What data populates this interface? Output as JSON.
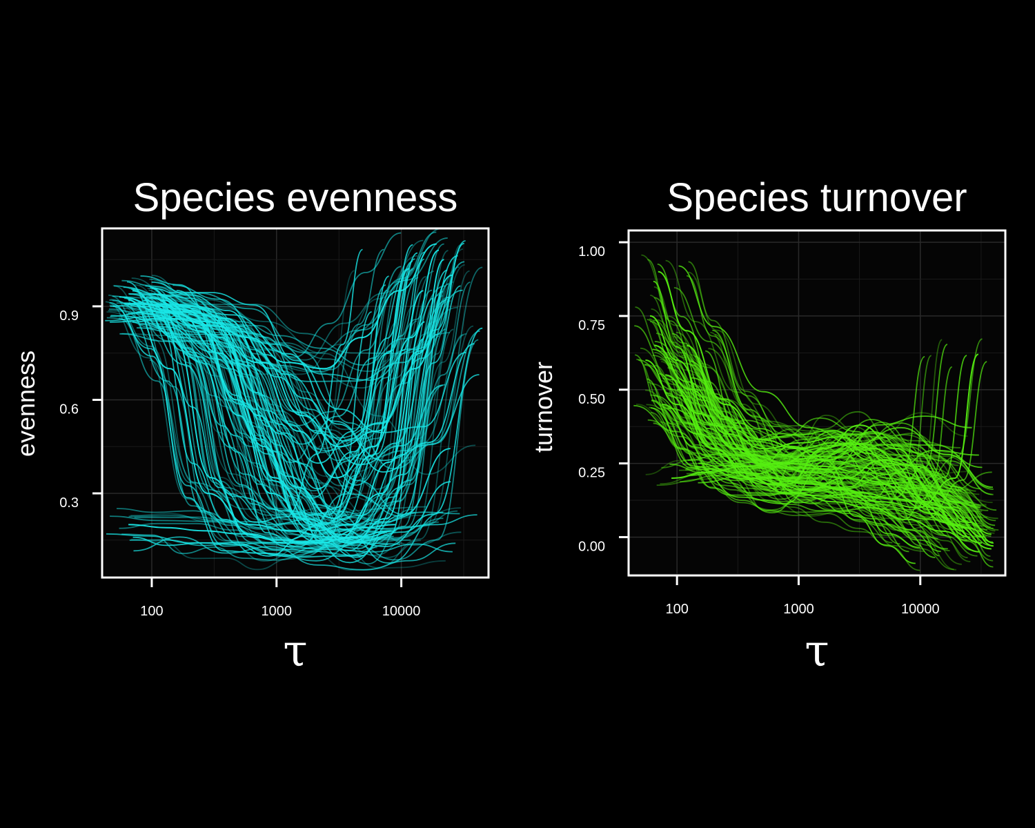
{
  "chart_data": [
    {
      "type": "line",
      "title": "Species evenness",
      "xlabel": "τ",
      "ylabel": "evenness",
      "x_scale": "log10",
      "xlim": [
        40,
        50000
      ],
      "ylim": [
        0.03,
        1.15
      ],
      "xticks": [
        100,
        1000,
        10000
      ],
      "xtick_labels": [
        "100",
        "1000",
        "10000"
      ],
      "yticks": [
        0.3,
        0.6,
        0.9
      ],
      "ytick_labels": [
        "0.3",
        "0.6",
        "0.9"
      ],
      "grid": true,
      "legend": "none",
      "line_color": "#19e6e6",
      "series_count_estimate": 120,
      "series": [
        {
          "x": [
            55,
            120,
            250,
            500,
            900,
            2000,
            4000,
            8000,
            14000,
            22000
          ],
          "y": [
            0.93,
            0.9,
            0.82,
            0.55,
            0.3,
            0.18,
            0.2,
            0.4,
            0.75,
            1.05
          ]
        },
        {
          "x": [
            60,
            130,
            300,
            700,
            1500,
            3000,
            6000,
            12000,
            20000
          ],
          "y": [
            0.91,
            0.88,
            0.85,
            0.72,
            0.5,
            0.35,
            0.45,
            0.8,
            1.08
          ]
        },
        {
          "x": [
            70,
            150,
            300,
            600,
            1200,
            2500,
            5000,
            9000
          ],
          "y": [
            0.95,
            0.8,
            0.35,
            0.17,
            0.14,
            0.15,
            0.16,
            0.18
          ]
        },
        {
          "x": [
            80,
            160,
            350,
            800,
            1500,
            3000,
            7000,
            15000
          ],
          "y": [
            0.9,
            0.88,
            0.75,
            0.45,
            0.22,
            0.15,
            0.3,
            0.95
          ]
        },
        {
          "x": [
            65,
            140,
            280,
            600,
            1300,
            2600,
            5000,
            9000
          ],
          "y": [
            0.92,
            0.7,
            0.3,
            0.2,
            0.18,
            0.16,
            0.19,
            0.2
          ]
        },
        {
          "x": [
            100,
            200,
            400,
            800,
            1600,
            3200,
            6400,
            12800,
            25600
          ],
          "y": [
            0.94,
            0.9,
            0.86,
            0.72,
            0.55,
            0.45,
            0.5,
            0.7,
            1.0
          ]
        },
        {
          "x": [
            90,
            180,
            360,
            720,
            1440,
            2880,
            5760,
            11520
          ],
          "y": [
            0.93,
            0.89,
            0.8,
            0.55,
            0.32,
            0.22,
            0.42,
            1.02
          ]
        },
        {
          "x": [
            75,
            150,
            300,
            600,
            1200,
            2400,
            4800,
            9600,
            19200
          ],
          "y": [
            0.88,
            0.86,
            0.84,
            0.8,
            0.72,
            0.7,
            0.8,
            0.95,
            1.1
          ]
        },
        {
          "x": [
            120,
            240,
            480,
            960,
            1920,
            3840,
            7680,
            15360
          ],
          "y": [
            0.92,
            0.85,
            0.6,
            0.35,
            0.2,
            0.14,
            0.22,
            0.85
          ]
        },
        {
          "x": [
            65,
            130,
            260,
            520,
            1040,
            2080,
            4160,
            8320
          ],
          "y": [
            0.2,
            0.19,
            0.18,
            0.17,
            0.15,
            0.14,
            0.16,
            0.18
          ]
        }
      ]
    },
    {
      "type": "line",
      "title": "Species turnover",
      "xlabel": "τ",
      "ylabel": "turnover",
      "x_scale": "log10",
      "xlim": [
        40,
        50000
      ],
      "ylim": [
        -0.13,
        1.04
      ],
      "xticks": [
        100,
        1000,
        10000
      ],
      "xtick_labels": [
        "100",
        "1000",
        "10000"
      ],
      "yticks": [
        0.0,
        0.25,
        0.5,
        0.75,
        1.0
      ],
      "ytick_labels": [
        "0.00",
        "0.25",
        "0.50",
        "0.75",
        "1.00"
      ],
      "grid": true,
      "legend": "none",
      "line_color": "#55ee11",
      "series_count_estimate": 120,
      "series": [
        {
          "x": [
            60,
            100,
            200,
            400,
            800,
            1600,
            3200,
            6400,
            12800,
            25600,
            40000
          ],
          "y": [
            0.75,
            0.6,
            0.38,
            0.28,
            0.25,
            0.24,
            0.22,
            0.17,
            0.1,
            0.03,
            -0.03
          ]
        },
        {
          "x": [
            70,
            120,
            250,
            500,
            1000,
            2000,
            4000,
            8000,
            16000,
            32000
          ],
          "y": [
            0.9,
            0.7,
            0.45,
            0.33,
            0.3,
            0.32,
            0.26,
            0.15,
            0.05,
            -0.02
          ]
        },
        {
          "x": [
            80,
            150,
            300,
            600,
            1200,
            2400,
            4800,
            9600,
            19200,
            38400
          ],
          "y": [
            0.55,
            0.42,
            0.3,
            0.25,
            0.22,
            0.2,
            0.18,
            0.12,
            0.04,
            -0.04
          ]
        },
        {
          "x": [
            55,
            100,
            200,
            400,
            800,
            1600,
            3200,
            6400,
            12800,
            25600
          ],
          "y": [
            0.6,
            0.45,
            0.3,
            0.2,
            0.15,
            0.14,
            0.15,
            0.13,
            0.08,
            0.0
          ]
        },
        {
          "x": [
            90,
            180,
            360,
            720,
            1440,
            2880,
            5760,
            11520,
            23040
          ],
          "y": [
            0.2,
            0.22,
            0.24,
            0.25,
            0.3,
            0.32,
            0.25,
            0.12,
            0.02
          ]
        },
        {
          "x": [
            65,
            130,
            260,
            520,
            1040,
            2080,
            4160,
            8320,
            16640,
            33280
          ],
          "y": [
            0.65,
            0.5,
            0.35,
            0.3,
            0.32,
            0.34,
            0.3,
            0.2,
            0.1,
            0.0
          ]
        },
        {
          "x": [
            75,
            150,
            300,
            600,
            1200,
            2400,
            4800,
            9600,
            19200,
            38400
          ],
          "y": [
            0.45,
            0.35,
            0.25,
            0.18,
            0.16,
            0.2,
            0.26,
            0.24,
            0.12,
            0.01
          ]
        },
        {
          "x": [
            100,
            200,
            400,
            800,
            1600,
            3200,
            6400,
            12800,
            25600,
            40000
          ],
          "y": [
            0.5,
            0.3,
            0.2,
            0.18,
            0.3,
            0.38,
            0.3,
            0.15,
            0.05,
            -0.02
          ]
        },
        {
          "x": [
            150,
            300,
            600,
            1200,
            2400,
            4800,
            9600,
            19200,
            30000
          ],
          "y": [
            0.25,
            0.22,
            0.2,
            0.18,
            0.16,
            0.12,
            0.1,
            0.2,
            0.62
          ]
        },
        {
          "x": [
            120,
            240,
            480,
            960,
            1920,
            3840,
            7680,
            15360,
            30720
          ],
          "y": [
            0.65,
            0.4,
            0.25,
            0.15,
            0.12,
            0.1,
            0.06,
            0.02,
            -0.05
          ]
        }
      ]
    }
  ]
}
